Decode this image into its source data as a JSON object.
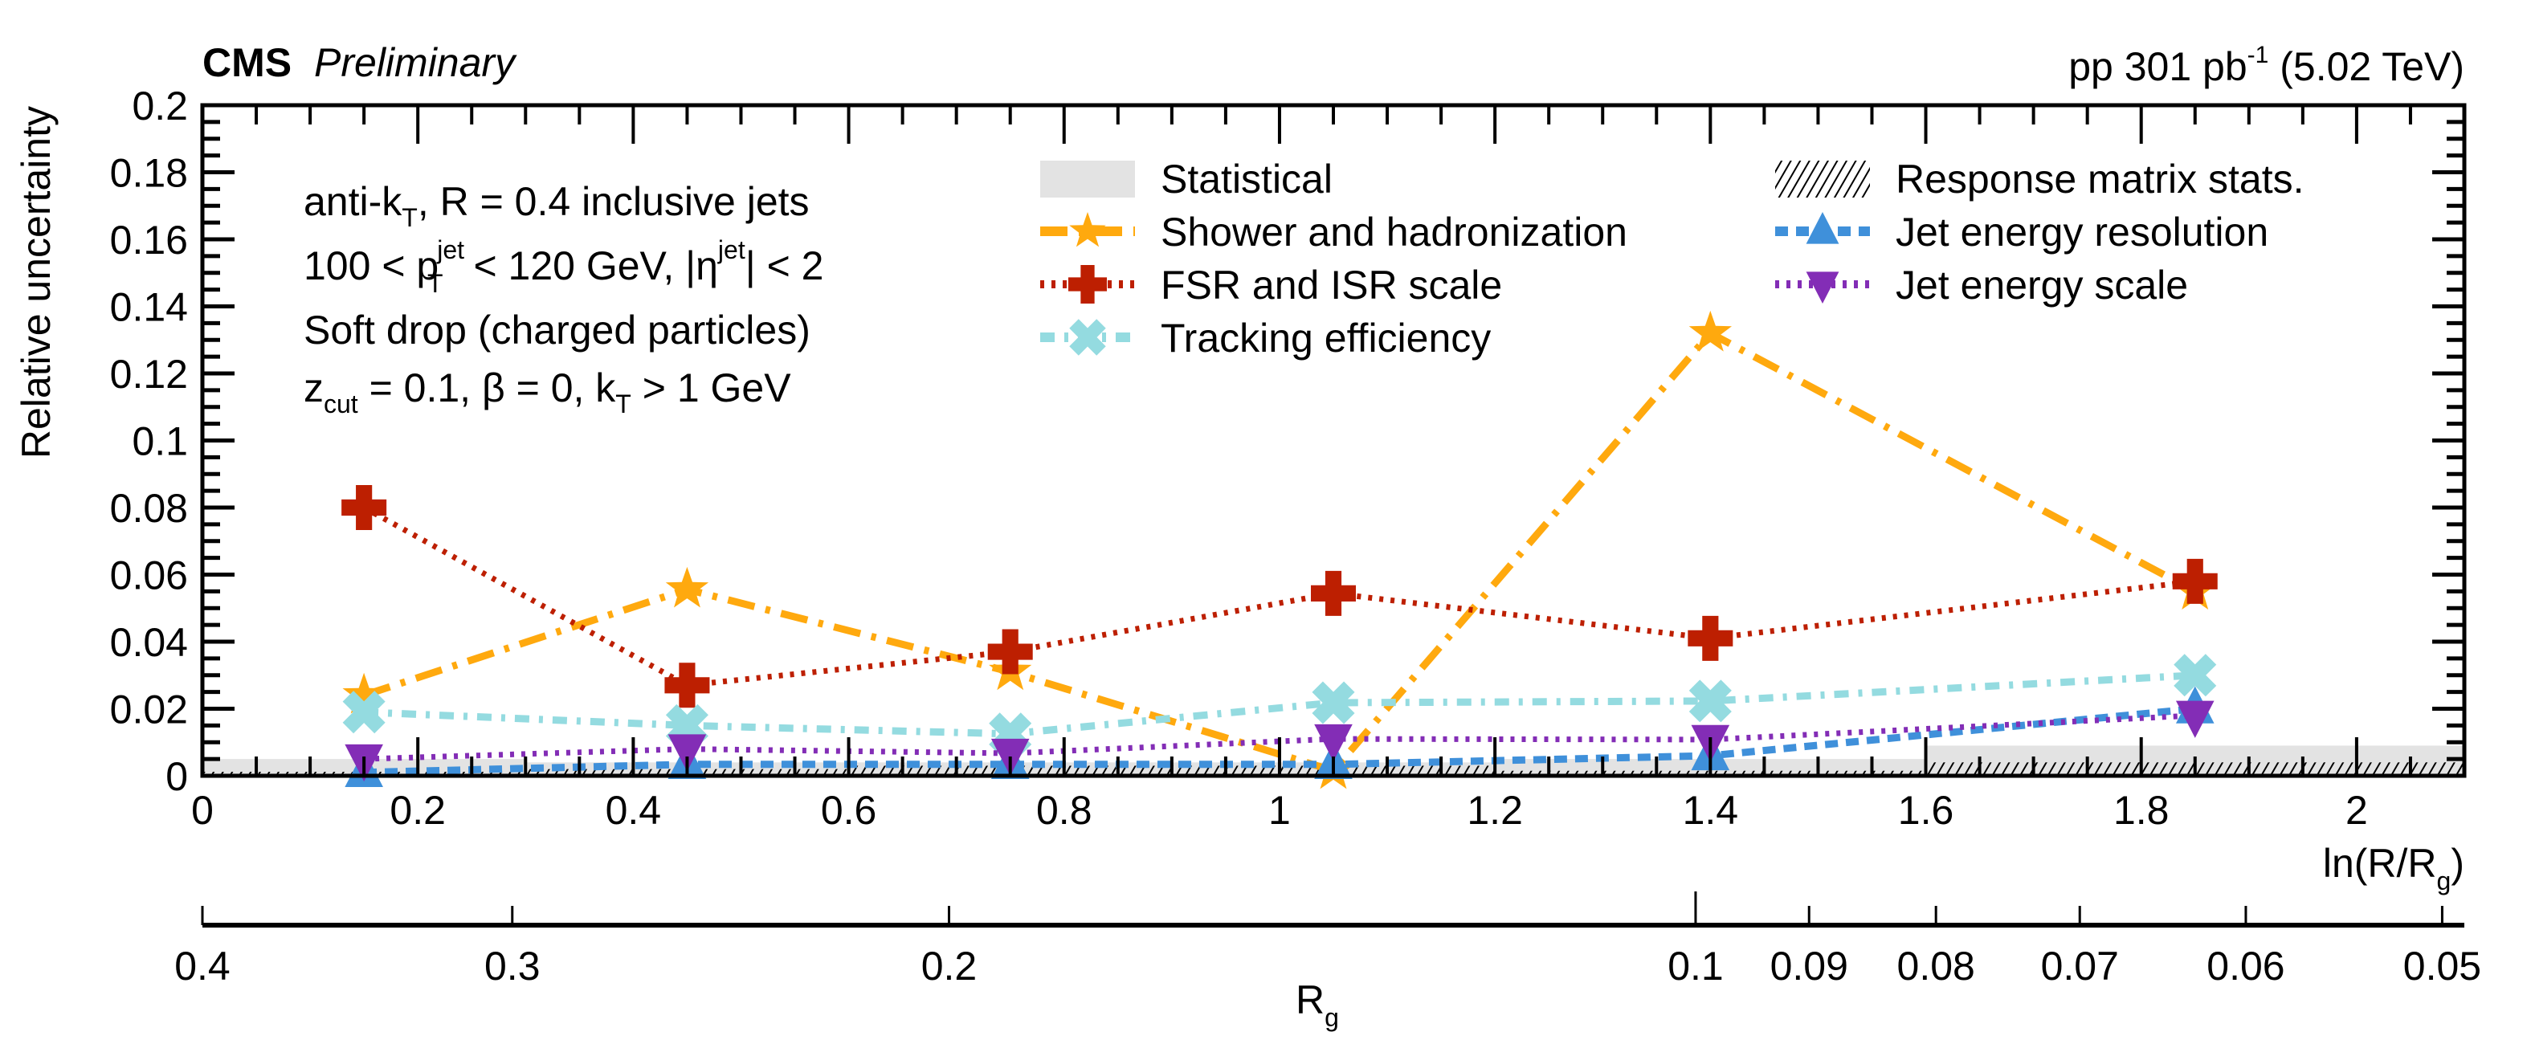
{
  "header": {
    "experiment": "CMS",
    "status": "Preliminary",
    "lumi_prefix": "pp 301 pb",
    "lumi_sup": "-1",
    "lumi_suffix": " (5.02 TeV)"
  },
  "annotations": {
    "line1_main": "anti-k",
    "line1_sub": "T",
    "line1_rest": ", R = 0.4 inclusive jets",
    "line2_a": "100 < p",
    "line2_sup": "jet",
    "line2_sub": "T",
    "line2_b": " < 120 GeV, |η",
    "line2_sup2": "jet",
    "line2_c": "| < 2",
    "line3": "Soft drop (charged particles)",
    "line4_a": "z",
    "line4_sub": "cut",
    "line4_b": " = 0.1, β = 0, k",
    "line4_sub2": "T",
    "line4_c": " > 1 GeV"
  },
  "chart_data": {
    "type": "line",
    "title": "",
    "xlabel": "ln(R/R_g)",
    "xlabel_main": "ln(R/R",
    "xlabel_sub": "g",
    "xlabel_close": ")",
    "ylabel": "Relative uncertainty",
    "xlim": [
      0,
      2.1
    ],
    "ylim": [
      0,
      0.2
    ],
    "x_ticks": [
      0,
      0.2,
      0.4,
      0.6,
      0.8,
      1,
      1.2,
      1.4,
      1.6,
      1.8,
      2
    ],
    "x_tick_labels": [
      "0",
      "0.2",
      "0.4",
      "0.6",
      "0.8",
      "1",
      "1.2",
      "1.4",
      "1.6",
      "1.8",
      "2"
    ],
    "y_ticks": [
      0,
      0.02,
      0.04,
      0.06,
      0.08,
      0.1,
      0.12,
      0.14,
      0.16,
      0.18,
      0.2
    ],
    "y_tick_labels": [
      "0",
      "0.02",
      "0.04",
      "0.06",
      "0.08",
      "0.1",
      "0.12",
      "0.14",
      "0.16",
      "0.18",
      "0.2"
    ],
    "secondary_axis": {
      "label_main": "R",
      "label_sub": "g",
      "relation": "R_g = 0.4 * exp(-x)",
      "ticks": [
        0.4,
        0.3,
        0.2,
        0.1,
        0.09,
        0.08,
        0.07,
        0.06,
        0.05
      ],
      "tick_labels": [
        "0.4",
        "0.3",
        "0.2",
        "0.1",
        "0.09",
        "0.08",
        "0.07",
        "0.06",
        "0.05"
      ]
    },
    "x": [
      0.15,
      0.45,
      0.75,
      1.05,
      1.4,
      1.85
    ],
    "bands": [
      {
        "name": "Statistical",
        "style": "fill",
        "color": "#e3e3e3",
        "bin_edges": [
          0,
          0.3,
          0.6,
          0.9,
          1.2,
          1.6,
          2.1
        ],
        "values": [
          0.005,
          0.004,
          0.004,
          0.004,
          0.005,
          0.009
        ]
      },
      {
        "name": "Response matrix stats.",
        "style": "hatch",
        "color": "#000000",
        "bin_edges": [
          0,
          0.3,
          0.6,
          0.9,
          1.2,
          1.6,
          2.1
        ],
        "values": [
          0.0012,
          0.002,
          0.003,
          0.003,
          0.0015,
          0.004
        ]
      }
    ],
    "series": [
      {
        "name": "Shower and hadronization",
        "color": "#ffa90e",
        "marker": "star",
        "dash": "dashdot",
        "values": [
          0.024,
          0.0556,
          0.031,
          0.0015,
          0.132,
          0.055
        ]
      },
      {
        "name": "FSR and ISR scale",
        "color": "#bd1f01",
        "marker": "cross",
        "dash": "dotted",
        "values": [
          0.08,
          0.027,
          0.037,
          0.0544,
          0.041,
          0.058
        ]
      },
      {
        "name": "Tracking efficiency",
        "color": "#94dbe0",
        "marker": "x",
        "dash": "dashdot-dense",
        "values": [
          0.019,
          0.015,
          0.0125,
          0.0218,
          0.0223,
          0.03
        ]
      },
      {
        "name": "Jet energy resolution",
        "color": "#3f90da",
        "marker": "triangle-up",
        "dash": "dashed",
        "values": [
          0.001,
          0.0034,
          0.0034,
          0.0034,
          0.006,
          0.02
        ]
      },
      {
        "name": "Jet energy scale",
        "color": "#832db6",
        "marker": "triangle-down",
        "dash": "dotted",
        "values": [
          0.005,
          0.008,
          0.0067,
          0.011,
          0.0108,
          0.018
        ]
      }
    ],
    "legend": {
      "placement": "top-right",
      "columns": [
        [
          "Statistical",
          "Shower and hadronization",
          "FSR and ISR scale",
          "Tracking efficiency"
        ],
        [
          "Response matrix stats.",
          "Jet energy resolution",
          "Jet energy scale"
        ]
      ]
    },
    "grid": false
  }
}
